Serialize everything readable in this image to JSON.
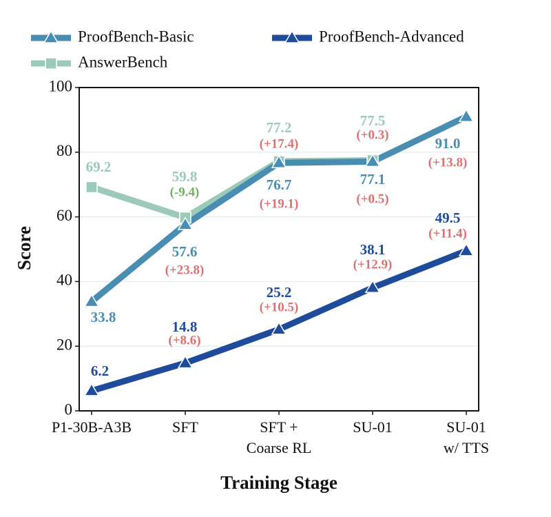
{
  "chart_data": {
    "type": "line",
    "categories": [
      [
        "P1-30B-A3B"
      ],
      [
        "SFT"
      ],
      [
        "SFT +",
        "Coarse RL"
      ],
      [
        "SU-01"
      ],
      [
        "SU-01",
        "w/ TTS"
      ]
    ],
    "x_label": "Training Stage",
    "y_label": "Score",
    "ylim": [
      0,
      100
    ],
    "yticks": [
      0,
      20,
      40,
      60,
      80,
      100
    ],
    "grid": true,
    "legend": "top",
    "series": [
      {
        "name": "ProofBench-Basic",
        "color": "#4a8db3",
        "marker": "triangle",
        "values": [
          33.8,
          57.6,
          76.7,
          77.1,
          91.0
        ],
        "value_labels": [
          "33.8",
          "57.6",
          "76.7",
          "77.1",
          "91.0"
        ],
        "deltas": [
          null,
          "(+23.8)",
          "(+19.1)",
          "(+0.5)",
          "(+13.8)"
        ]
      },
      {
        "name": "ProofBench-Advanced",
        "color": "#1f4b9b",
        "marker": "triangle",
        "values": [
          6.2,
          14.8,
          25.2,
          38.1,
          49.5
        ],
        "value_labels": [
          "6.2",
          "14.8",
          "25.2",
          "38.1",
          "49.5"
        ],
        "deltas": [
          null,
          "(+8.6)",
          "(+10.5)",
          "(+12.9)",
          "(+11.4)"
        ]
      },
      {
        "name": "AnswerBench",
        "color": "#9ccab8",
        "marker": "square",
        "values": [
          69.2,
          59.8,
          77.2,
          77.5,
          null
        ],
        "value_labels": [
          "69.2",
          "59.8",
          "77.2",
          "77.5",
          null
        ],
        "deltas": [
          null,
          "(-9.4)",
          "(+17.4)",
          "(+0.3)",
          null
        ]
      }
    ]
  }
}
